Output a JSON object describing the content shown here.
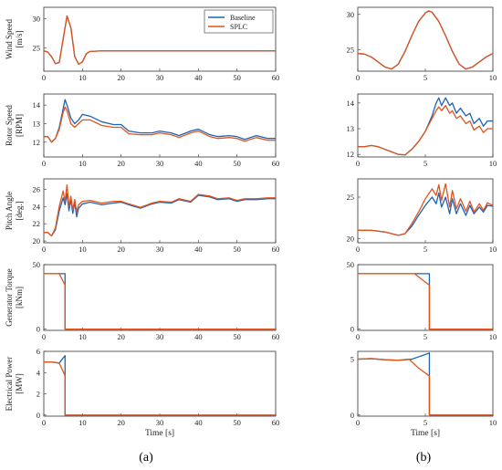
{
  "colors": {
    "baseline": "#1f63b5",
    "splc": "#e0541b",
    "axis": "#333333",
    "text": "#222222"
  },
  "captions": {
    "left": "(a)",
    "right": "(b)"
  },
  "legend": {
    "baseline": "Baseline",
    "splc": "SPLC"
  },
  "chart_data": [
    {
      "id": "ws_a",
      "type": "line",
      "ylabel": "Wind Speed\n[m/s]",
      "xlim": [
        0,
        60
      ],
      "ylim": [
        21,
        32
      ],
      "xticks": [
        0,
        10,
        20,
        30,
        40,
        50,
        60
      ],
      "yticks": [
        25,
        30
      ],
      "xlabel": "",
      "legend": "top-right",
      "series": [
        {
          "name": "Baseline",
          "x": [
            0,
            1,
            2,
            3,
            4,
            5,
            6,
            7,
            8,
            9,
            10,
            11,
            12,
            15,
            20,
            30,
            40,
            50,
            60
          ],
          "y": [
            24.5,
            24.3,
            23.5,
            22.3,
            22.5,
            26.5,
            30.5,
            28.5,
            23.5,
            22.2,
            22.6,
            24.0,
            24.4,
            24.5,
            24.5,
            24.5,
            24.5,
            24.5,
            24.5
          ]
        },
        {
          "name": "SPLC",
          "x": [
            0,
            1,
            2,
            3,
            4,
            5,
            6,
            7,
            8,
            9,
            10,
            11,
            12,
            15,
            20,
            30,
            40,
            50,
            60
          ],
          "y": [
            24.5,
            24.3,
            23.5,
            22.3,
            22.5,
            26.5,
            30.5,
            28.5,
            23.5,
            22.2,
            22.6,
            24.0,
            24.4,
            24.5,
            24.5,
            24.5,
            24.5,
            24.5,
            24.5
          ]
        }
      ]
    },
    {
      "id": "ws_b",
      "type": "line",
      "ylabel": "",
      "xlim": [
        0,
        10
      ],
      "ylim": [
        22,
        31
      ],
      "xticks": [
        0,
        5,
        10
      ],
      "yticks": [
        25,
        30
      ],
      "xlabel": "",
      "series": [
        {
          "name": "Baseline",
          "x": [
            0,
            0.5,
            1,
            1.5,
            2,
            2.5,
            3,
            3.5,
            4,
            4.5,
            5,
            5.25,
            5.5,
            6,
            6.5,
            7,
            7.5,
            8,
            8.5,
            9,
            9.5,
            10
          ],
          "y": [
            24.5,
            24.4,
            24.0,
            23.3,
            22.6,
            22.3,
            23.0,
            24.8,
            27.0,
            29.0,
            30.2,
            30.5,
            30.3,
            29.0,
            27.0,
            24.8,
            23.0,
            22.3,
            22.6,
            23.3,
            24.0,
            24.5
          ]
        },
        {
          "name": "SPLC",
          "x": [
            0,
            0.5,
            1,
            1.5,
            2,
            2.5,
            3,
            3.5,
            4,
            4.5,
            5,
            5.25,
            5.5,
            6,
            6.5,
            7,
            7.5,
            8,
            8.5,
            9,
            9.5,
            10
          ],
          "y": [
            24.5,
            24.4,
            24.0,
            23.3,
            22.6,
            22.3,
            23.0,
            24.8,
            27.0,
            29.0,
            30.2,
            30.5,
            30.3,
            29.0,
            27.0,
            24.8,
            23.0,
            22.3,
            22.6,
            23.3,
            24.0,
            24.5
          ]
        }
      ]
    },
    {
      "id": "rs_a",
      "type": "line",
      "ylabel": "Rotor Speed\n[RPM]",
      "xlim": [
        0,
        60
      ],
      "ylim": [
        11.2,
        14.6
      ],
      "xticks": [
        0,
        10,
        20,
        30,
        40,
        50,
        60
      ],
      "yticks": [
        12,
        13,
        14
      ],
      "xlabel": "",
      "series": [
        {
          "name": "Baseline",
          "x": [
            0,
            1,
            2,
            3,
            4,
            5,
            5.5,
            6,
            7,
            8,
            9,
            10,
            12,
            15,
            18,
            20,
            22,
            25,
            28,
            30,
            33,
            35,
            38,
            40,
            43,
            45,
            48,
            50,
            52,
            55,
            58,
            60
          ],
          "y": [
            12.3,
            12.3,
            12.0,
            12.2,
            12.8,
            13.8,
            14.3,
            14.0,
            13.3,
            13.0,
            13.2,
            13.5,
            13.4,
            13.1,
            12.95,
            12.95,
            12.6,
            12.5,
            12.5,
            12.6,
            12.5,
            12.35,
            12.6,
            12.7,
            12.4,
            12.3,
            12.35,
            12.3,
            12.15,
            12.35,
            12.2,
            12.2
          ]
        },
        {
          "name": "SPLC",
          "x": [
            0,
            1,
            2,
            3,
            4,
            5,
            5.5,
            6,
            7,
            8,
            9,
            10,
            12,
            15,
            18,
            20,
            22,
            25,
            28,
            30,
            33,
            35,
            38,
            40,
            43,
            45,
            48,
            50,
            52,
            55,
            58,
            60
          ],
          "y": [
            12.3,
            12.3,
            12.0,
            12.2,
            12.7,
            13.6,
            13.9,
            13.7,
            13.0,
            12.8,
            13.0,
            13.2,
            13.2,
            12.9,
            12.8,
            12.8,
            12.45,
            12.4,
            12.4,
            12.5,
            12.4,
            12.25,
            12.5,
            12.6,
            12.3,
            12.2,
            12.25,
            12.2,
            12.05,
            12.25,
            12.1,
            12.1
          ]
        }
      ]
    },
    {
      "id": "rs_b",
      "type": "line",
      "ylabel": "",
      "xlim": [
        0,
        10
      ],
      "ylim": [
        11.9,
        14.35
      ],
      "xticks": [
        0,
        5,
        10
      ],
      "yticks": [
        12,
        13,
        14
      ],
      "xlabel": "",
      "series": [
        {
          "name": "Baseline",
          "x": [
            0,
            0.5,
            1,
            1.5,
            2,
            2.5,
            3,
            3.5,
            4,
            4.5,
            5,
            5.5,
            5.8,
            6,
            6.2,
            6.5,
            6.8,
            7,
            7.3,
            7.6,
            8,
            8.3,
            8.6,
            9,
            9.3,
            9.6,
            10
          ],
          "y": [
            12.3,
            12.3,
            12.35,
            12.3,
            12.2,
            12.1,
            12.0,
            11.98,
            12.2,
            12.5,
            12.9,
            13.5,
            14.0,
            14.2,
            13.9,
            14.2,
            13.9,
            14.0,
            13.6,
            13.8,
            13.5,
            13.6,
            13.2,
            13.4,
            13.1,
            13.3,
            13.3
          ]
        },
        {
          "name": "SPLC",
          "x": [
            0,
            0.5,
            1,
            1.5,
            2,
            2.5,
            3,
            3.5,
            4,
            4.5,
            5,
            5.5,
            5.8,
            6,
            6.2,
            6.5,
            6.8,
            7,
            7.3,
            7.6,
            8,
            8.3,
            8.6,
            9,
            9.3,
            9.6,
            10
          ],
          "y": [
            12.3,
            12.3,
            12.35,
            12.3,
            12.2,
            12.1,
            12.0,
            11.98,
            12.2,
            12.5,
            12.9,
            13.4,
            13.7,
            13.85,
            13.7,
            13.9,
            13.6,
            13.7,
            13.4,
            13.5,
            13.2,
            13.3,
            12.95,
            13.1,
            12.85,
            13.0,
            13.0
          ]
        }
      ]
    },
    {
      "id": "pa_a",
      "type": "line",
      "ylabel": "Pitch Angle\n[deg.]",
      "xlim": [
        0,
        60
      ],
      "ylim": [
        19.8,
        27.2
      ],
      "xticks": [
        0,
        10,
        20,
        30,
        40,
        50,
        60
      ],
      "yticks": [
        20,
        22,
        24,
        26
      ],
      "xlabel": "",
      "series": [
        {
          "name": "Baseline",
          "x": [
            0,
            1,
            2,
            3,
            4,
            5,
            5.5,
            6,
            6.5,
            7,
            7.5,
            8,
            8.5,
            9,
            10,
            12,
            15,
            18,
            20,
            22,
            25,
            28,
            30,
            33,
            35,
            38,
            40,
            43,
            45,
            48,
            50,
            52,
            55,
            58,
            60
          ],
          "y": [
            21.0,
            21.0,
            20.6,
            21.3,
            23.5,
            25.0,
            24.2,
            25.5,
            23.5,
            24.8,
            23.2,
            24.5,
            22.8,
            23.8,
            24.3,
            24.5,
            24.2,
            24.4,
            24.5,
            24.2,
            23.8,
            24.3,
            24.5,
            24.4,
            24.8,
            24.5,
            25.3,
            25.1,
            24.8,
            24.9,
            24.6,
            24.8,
            24.8,
            24.9,
            24.9
          ]
        },
        {
          "name": "SPLC",
          "x": [
            0,
            1,
            2,
            3,
            4,
            5,
            5.5,
            6,
            6.5,
            7,
            7.5,
            8,
            8.5,
            9,
            10,
            12,
            15,
            18,
            20,
            22,
            25,
            28,
            30,
            33,
            35,
            38,
            40,
            43,
            45,
            48,
            50,
            52,
            55,
            58,
            60
          ],
          "y": [
            21.0,
            21.0,
            20.6,
            21.5,
            24.0,
            25.8,
            24.6,
            26.5,
            24.0,
            25.2,
            23.6,
            24.8,
            23.4,
            24.2,
            24.6,
            24.7,
            24.4,
            24.6,
            24.6,
            24.3,
            23.9,
            24.4,
            24.6,
            24.5,
            24.9,
            24.6,
            25.4,
            25.2,
            24.9,
            25.0,
            24.7,
            24.9,
            24.9,
            25.0,
            25.0
          ]
        }
      ]
    },
    {
      "id": "pa_b",
      "type": "line",
      "ylabel": "",
      "xlim": [
        0,
        10
      ],
      "ylim": [
        19.5,
        27.2
      ],
      "xticks": [
        0,
        5,
        10
      ],
      "yticks": [
        20,
        25
      ],
      "xlabel": "",
      "series": [
        {
          "name": "Baseline",
          "x": [
            0,
            1,
            2,
            3,
            3.5,
            4,
            4.5,
            5,
            5.5,
            5.8,
            6,
            6.2,
            6.5,
            6.8,
            7,
            7.3,
            7.6,
            8,
            8.3,
            8.6,
            9,
            9.3,
            9.6,
            10
          ],
          "y": [
            21.0,
            21.0,
            20.8,
            20.4,
            20.6,
            21.5,
            22.8,
            24.0,
            25.0,
            24.2,
            25.5,
            23.8,
            25.0,
            23.0,
            24.8,
            23.0,
            24.2,
            22.8,
            24.0,
            23.0,
            23.8,
            23.2,
            24.0,
            23.9
          ]
        },
        {
          "name": "SPLC",
          "x": [
            0,
            1,
            2,
            3,
            3.5,
            4,
            4.5,
            5,
            5.5,
            5.8,
            6,
            6.2,
            6.5,
            6.8,
            7,
            7.3,
            7.6,
            8,
            8.3,
            8.6,
            9,
            9.3,
            9.6,
            10
          ],
          "y": [
            21.0,
            21.0,
            20.8,
            20.4,
            20.6,
            21.8,
            23.2,
            24.8,
            26.0,
            25.2,
            26.5,
            24.6,
            26.6,
            23.8,
            25.8,
            23.6,
            24.8,
            23.3,
            24.5,
            23.2,
            24.2,
            23.4,
            24.3,
            24.0
          ]
        }
      ]
    },
    {
      "id": "gt_a",
      "type": "line",
      "ylabel": "Generator Torque\n[kNm]",
      "xlim": [
        0,
        60
      ],
      "ylim": [
        -1,
        50
      ],
      "xticks": [
        0,
        10,
        20,
        30,
        40,
        50,
        60
      ],
      "yticks": [
        0,
        50
      ],
      "xlabel": "",
      "series": [
        {
          "name": "Baseline",
          "x": [
            0,
            5,
            5.5,
            5.5,
            60
          ],
          "y": [
            43,
            43,
            43,
            0,
            0
          ]
        },
        {
          "name": "SPLC",
          "x": [
            0,
            4,
            5.5,
            5.5,
            60
          ],
          "y": [
            43,
            43,
            34,
            0,
            0
          ]
        }
      ]
    },
    {
      "id": "gt_b",
      "type": "line",
      "ylabel": "",
      "xlim": [
        0,
        10
      ],
      "ylim": [
        -1,
        50
      ],
      "xticks": [
        0,
        5,
        10
      ],
      "yticks": [
        0,
        50
      ],
      "xlabel": "",
      "series": [
        {
          "name": "Baseline",
          "x": [
            0,
            4.2,
            5.3,
            5.3,
            10
          ],
          "y": [
            43,
            43,
            43,
            0,
            0
          ]
        },
        {
          "name": "SPLC",
          "x": [
            0,
            4.2,
            5.3,
            5.3,
            10
          ],
          "y": [
            43,
            43,
            34,
            0,
            0
          ]
        }
      ]
    },
    {
      "id": "ep_a",
      "type": "line",
      "ylabel": "Electrical Power\n[MW]",
      "xlim": [
        0,
        60
      ],
      "ylim": [
        -0.1,
        6
      ],
      "xticks": [
        0,
        10,
        20,
        30,
        40,
        50,
        60
      ],
      "yticks": [
        0,
        2,
        4,
        6
      ],
      "xlabel": "Time [s]",
      "series": [
        {
          "name": "Baseline",
          "x": [
            0,
            2,
            4,
            5.5,
            5.5,
            60
          ],
          "y": [
            5.0,
            5.0,
            4.9,
            5.6,
            0,
            0
          ]
        },
        {
          "name": "SPLC",
          "x": [
            0,
            2,
            4,
            5.5,
            5.5,
            60
          ],
          "y": [
            5.0,
            5.0,
            4.9,
            3.7,
            0,
            0
          ]
        }
      ]
    },
    {
      "id": "ep_b",
      "type": "line",
      "ylabel": "",
      "xlim": [
        0,
        10
      ],
      "ylim": [
        -0.1,
        5.7
      ],
      "xticks": [
        0,
        5,
        10
      ],
      "yticks": [
        0,
        5
      ],
      "xlabel": "Time [s]",
      "series": [
        {
          "name": "Baseline",
          "x": [
            0,
            1,
            2,
            3,
            4,
            5.3,
            5.3,
            10
          ],
          "y": [
            5.0,
            5.05,
            4.95,
            4.9,
            5.0,
            5.55,
            0,
            0
          ]
        },
        {
          "name": "SPLC",
          "x": [
            0,
            1,
            2,
            3,
            3.8,
            4.5,
            5.3,
            5.3,
            10
          ],
          "y": [
            5.0,
            5.05,
            4.95,
            4.9,
            5.0,
            4.2,
            3.5,
            0,
            0
          ]
        }
      ]
    }
  ]
}
